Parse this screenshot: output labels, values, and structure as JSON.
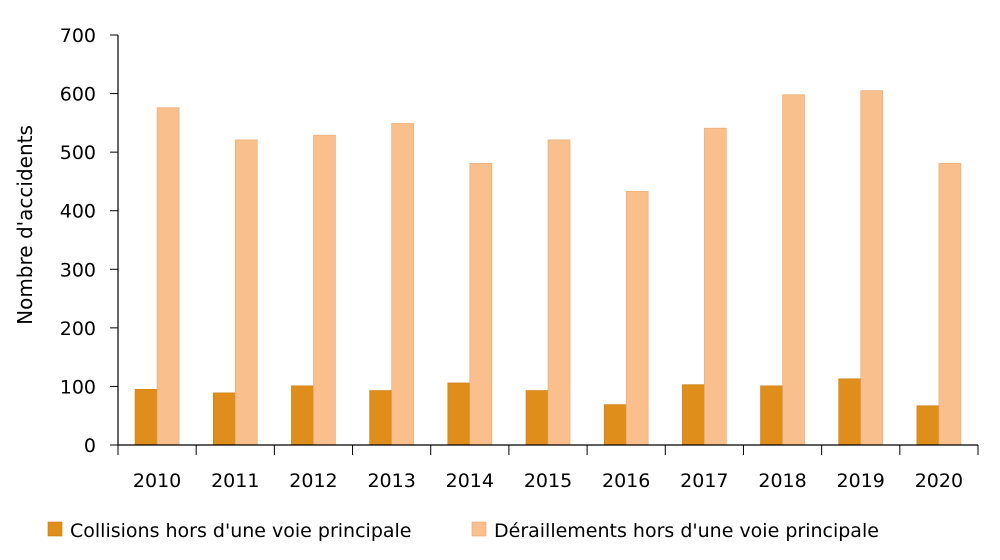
{
  "chart_data": {
    "type": "bar",
    "categories": [
      "2010",
      "2011",
      "2012",
      "2013",
      "2014",
      "2015",
      "2016",
      "2017",
      "2018",
      "2019",
      "2020"
    ],
    "series": [
      {
        "name": "Collisions hors d'une voie principale",
        "color": "#e08e1b",
        "values": [
          95,
          89,
          101,
          93,
          106,
          93,
          69,
          103,
          101,
          113,
          67
        ]
      },
      {
        "name": "Déraillements hors d'une voie principale",
        "color": "#f9bf8c",
        "values": [
          576,
          521,
          529,
          549,
          481,
          521,
          433,
          541,
          598,
          605,
          481
        ]
      }
    ],
    "xlabel": "",
    "ylabel": "Nombre d'accidents",
    "ylim": [
      0,
      700
    ],
    "yticks": [
      0,
      100,
      200,
      300,
      400,
      500,
      600,
      700
    ],
    "grid": false,
    "legend_position": "bottom"
  }
}
